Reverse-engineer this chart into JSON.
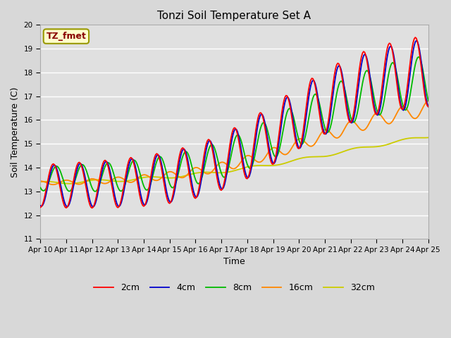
{
  "title": "Tonzi Soil Temperature Set A",
  "xlabel": "Time",
  "ylabel": "Soil Temperature (C)",
  "ylim": [
    11.0,
    20.0
  ],
  "yticks": [
    11.0,
    12.0,
    13.0,
    14.0,
    15.0,
    16.0,
    17.0,
    18.0,
    19.0,
    20.0
  ],
  "annotation_label": "TZ_fmet",
  "legend_labels": [
    "2cm",
    "4cm",
    "8cm",
    "16cm",
    "32cm"
  ],
  "line_colors": [
    "#ff0000",
    "#0000cc",
    "#00bb00",
    "#ff8800",
    "#cccc00"
  ],
  "figsize": [
    6.4,
    4.8
  ],
  "dpi": 100,
  "fig_bg_color": "#d8d8d8",
  "plot_bg_color": "#e0e0e0",
  "grid_color": "#ffffff",
  "annotation_text_color": "#880000",
  "annotation_bg_color": "#ffffcc",
  "annotation_edge_color": "#999900"
}
